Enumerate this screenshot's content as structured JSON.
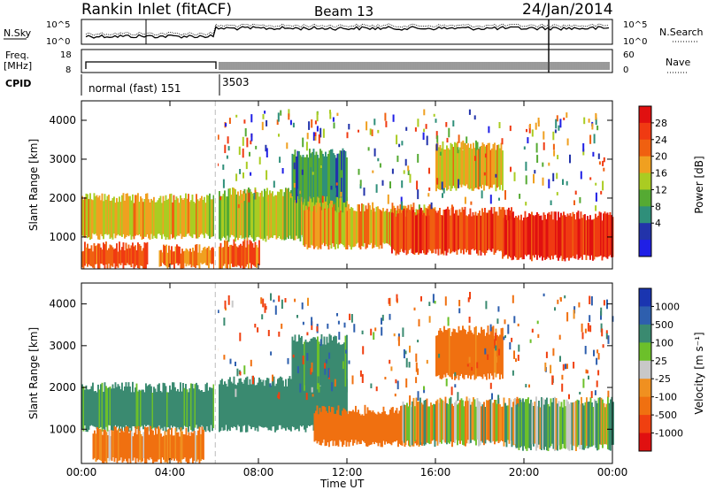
{
  "header": {
    "station": "Rankin Inlet (fitACF)",
    "beam": "Beam 13",
    "date": "24/Jan/2014"
  },
  "colors": {
    "power_scale": [
      "#1f1fe6",
      "#2233aa",
      "#2f8f7a",
      "#55aa33",
      "#aacc22",
      "#f0a020",
      "#f06010",
      "#f03a12",
      "#e01010"
    ],
    "velocity_scale": [
      "#1a35b0",
      "#2e5fae",
      "#3a8a70",
      "#6cc02a",
      "#c8c8c8",
      "#f09020",
      "#f07010",
      "#f04010",
      "#e01010"
    ],
    "ground_scatter": "#c8c8c8"
  },
  "top_panels": {
    "nsky_label": "N.Sky",
    "nsearch_label": "N.Search",
    "freq_label": "Freq.",
    "freq_unit": "[MHz]",
    "nave_label": "Nave",
    "cpid_label": "CPID",
    "noise_ticks_left": [
      "10^5",
      "10^0"
    ],
    "noise_ticks_right": [
      "10^5",
      "10^0"
    ],
    "freq_ticks": [
      "18",
      "8"
    ],
    "nave_ticks": [
      "60",
      "0"
    ],
    "cpid_1": "normal (fast) 151",
    "cpid_2": "3503"
  },
  "chart_data": [
    {
      "type": "heatmap",
      "name": "power",
      "ylabel": "Slant Range [km]",
      "colorbar_label": "Power [dB]",
      "colorbar_ticks": [
        "28",
        "24",
        "20",
        "16",
        "12",
        "8",
        "4"
      ],
      "ylim": [
        180,
        4500
      ],
      "yticks": [
        1000,
        2000,
        3000,
        4000
      ],
      "xlim": [
        0,
        24
      ],
      "xlabel": "",
      "bands": [
        {
          "t0": 0.0,
          "t1": 6.0,
          "r0": 1050,
          "r1": 1950,
          "v": 18
        },
        {
          "t0": 0.0,
          "t1": 3.0,
          "r0": 280,
          "r1": 700,
          "v": 24
        },
        {
          "t0": 3.5,
          "t1": 6.0,
          "r0": 300,
          "r1": 650,
          "v": 22
        },
        {
          "t0": 6.2,
          "t1": 8.0,
          "r0": 280,
          "r1": 800,
          "v": 24
        },
        {
          "t0": 6.2,
          "t1": 12.0,
          "r0": 1000,
          "r1": 2100,
          "v": 16
        },
        {
          "t0": 10.0,
          "t1": 16.0,
          "r0": 800,
          "r1": 1700,
          "v": 20
        },
        {
          "t0": 14.0,
          "t1": 19.5,
          "r0": 650,
          "r1": 1600,
          "v": 26
        },
        {
          "t0": 19.0,
          "t1": 24.0,
          "r0": 500,
          "r1": 1500,
          "v": 28
        },
        {
          "t0": 16.0,
          "t1": 19.0,
          "r0": 2300,
          "r1": 3300,
          "v": 18
        },
        {
          "t0": 9.5,
          "t1": 12.0,
          "r0": 2000,
          "r1": 3100,
          "v": 10
        }
      ]
    },
    {
      "type": "heatmap",
      "name": "velocity",
      "ylabel": "Slant Range [km]",
      "colorbar_label": "Velocity [m s⁻¹]",
      "colorbar_ticks": [
        "1000",
        "500",
        "100",
        "25",
        "-25",
        "-100",
        "-500",
        "-1000"
      ],
      "ylim": [
        180,
        4500
      ],
      "yticks": [
        1000,
        2000,
        3000,
        4000
      ],
      "xlim": [
        0,
        24
      ],
      "xlabel": "Time UT",
      "xticks": [
        "00:00",
        "04:00",
        "08:00",
        "12:00",
        "16:00",
        "20:00",
        "00:00"
      ],
      "bands": [
        {
          "t0": 0.0,
          "t1": 6.0,
          "r0": 1050,
          "r1": 1950,
          "v": 200
        },
        {
          "t0": 0.5,
          "t1": 5.5,
          "r0": 280,
          "r1": 900,
          "v": -150
        },
        {
          "t0": 6.2,
          "t1": 12.0,
          "r0": 1050,
          "r1": 2100,
          "v": 300
        },
        {
          "t0": 10.5,
          "t1": 15.5,
          "r0": 700,
          "r1": 1400,
          "v": -300
        },
        {
          "t0": 14.5,
          "t1": 20.0,
          "r0": 700,
          "r1": 1600,
          "v": 0
        },
        {
          "t0": 19.5,
          "t1": 24.0,
          "r0": 600,
          "r1": 1600,
          "v": 60
        },
        {
          "t0": 16.0,
          "t1": 19.0,
          "r0": 2300,
          "r1": 3300,
          "v": -200
        },
        {
          "t0": 9.5,
          "t1": 12.0,
          "r0": 2000,
          "r1": 3100,
          "v": 200
        }
      ]
    }
  ]
}
